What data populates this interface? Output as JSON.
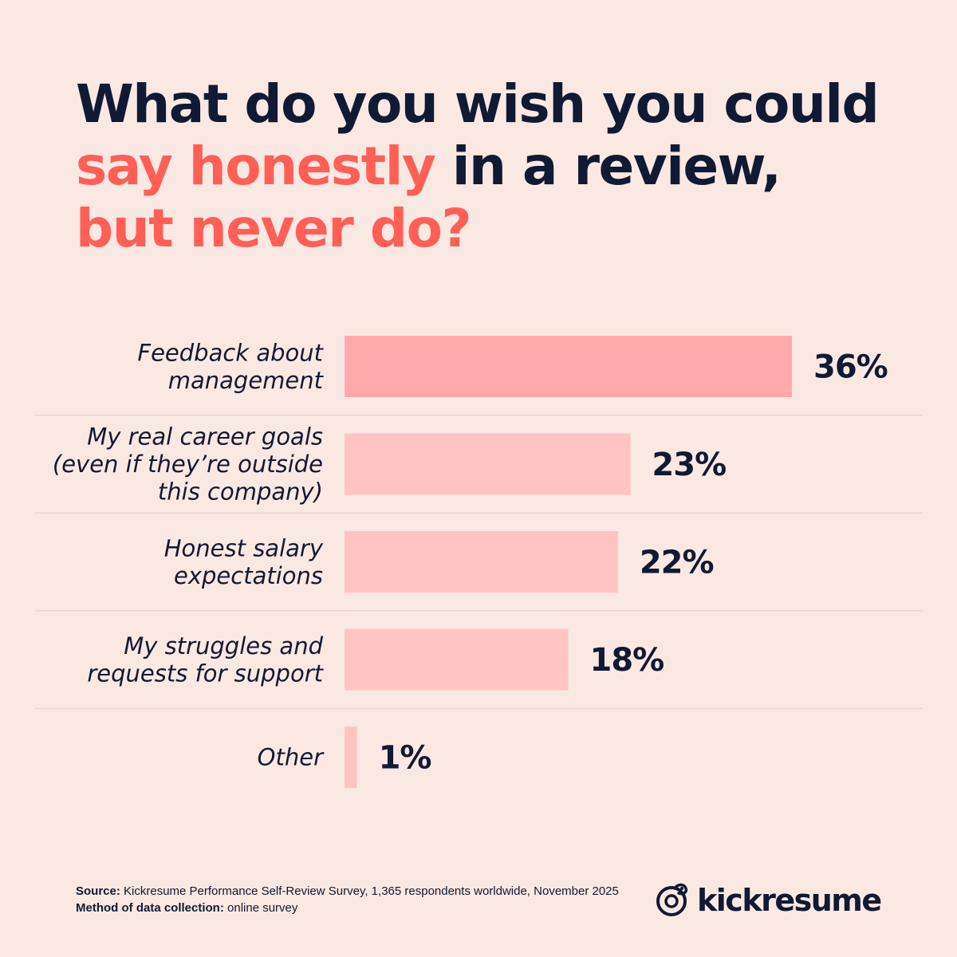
{
  "title": {
    "line1": "What do you wish you could",
    "line2_highlight": "say honestly",
    "line2_rest": " in a review,",
    "line3_highlight": "but never do?"
  },
  "chart_data": {
    "type": "bar",
    "orientation": "horizontal",
    "categories": [
      [
        "Feedback about",
        "management"
      ],
      [
        "My real career goals",
        "(even if they’re outside",
        "this company)"
      ],
      [
        "Honest salary",
        "expectations"
      ],
      [
        "My struggles and",
        "requests for support"
      ],
      [
        "Other"
      ]
    ],
    "values": [
      36,
      23,
      22,
      18,
      1
    ],
    "value_labels": [
      "36%",
      "23%",
      "22%",
      "18%",
      "1%"
    ],
    "xlim": [
      0,
      36
    ],
    "grid": false,
    "colors": [
      "#ffaaaa",
      "#ffc4c1",
      "#ffc4c1",
      "#ffc4c1",
      "#ffc4c1"
    ]
  },
  "footer": {
    "source_label": "Source:",
    "source_text": " Kickresume Performance Self-Review Survey, 1,365 respondents worldwide, November 2025",
    "method_label": "Method of data collection:",
    "method_text": " online survey"
  },
  "brand": {
    "name": "kickresume",
    "icon": "kickresume-logo-icon"
  }
}
